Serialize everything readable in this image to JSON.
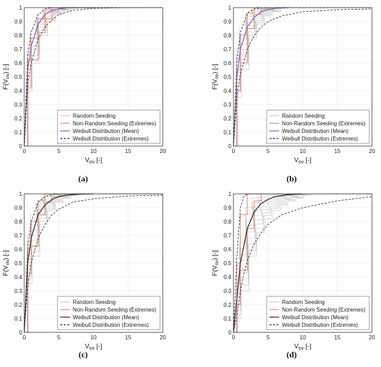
{
  "figure": {
    "panel_labels": [
      "(a)",
      "(b)",
      "(c)",
      "(d)"
    ]
  },
  "chart_data": [
    {
      "type": "line",
      "panel": "(a)",
      "xlabel": "V_ov [-]",
      "ylabel": "F(V_ov) [-]",
      "xlim": [
        0,
        20
      ],
      "ylim": [
        0,
        1
      ],
      "xticks": [
        0,
        5,
        10,
        15,
        20
      ],
      "yticks": [
        0,
        0.1,
        0.2,
        0.3,
        0.4,
        0.5,
        0.6,
        0.7,
        0.8,
        0.9,
        1
      ],
      "grid": true,
      "legend": "bottom-right",
      "series": [
        {
          "name": "Random Seeding",
          "kind": "step-band",
          "color": "#bdbdbd",
          "x": [
            0,
            0.5,
            1,
            2,
            3,
            4,
            5,
            6,
            7
          ],
          "lower": [
            0,
            0.4,
            0.6,
            0.8,
            0.9,
            0.95,
            0.98,
            0.995,
            1
          ],
          "upper": [
            0,
            0.7,
            0.84,
            0.95,
            0.99,
            1,
            1,
            1,
            1
          ]
        },
        {
          "name": "Non-Random Seeding (Extremes)",
          "kind": "step",
          "color": "#e08a7a",
          "x": [
            0,
            0.5,
            1,
            2,
            3,
            4,
            5,
            6
          ],
          "lower": [
            0,
            0.42,
            0.62,
            0.82,
            0.92,
            0.97,
            0.99,
            1
          ],
          "upper": [
            0,
            0.62,
            0.78,
            0.92,
            0.98,
            1,
            1,
            1
          ]
        },
        {
          "name": "Weibull Distribution (Mean)",
          "kind": "line",
          "color": "#7b5fb0",
          "x": [
            0,
            0.5,
            1,
            2,
            3,
            4,
            5,
            6,
            8,
            10
          ],
          "values": [
            0,
            0.55,
            0.72,
            0.88,
            0.95,
            0.98,
            0.99,
            1,
            1,
            1
          ]
        },
        {
          "name": "Weibull Distribution (Extremes)",
          "kind": "dashed",
          "color": "#333333",
          "x": [
            0,
            0.5,
            1,
            2,
            3,
            4,
            5,
            7,
            10,
            15,
            20
          ],
          "lower": [
            0,
            0.45,
            0.6,
            0.77,
            0.86,
            0.91,
            0.95,
            0.98,
            0.995,
            1,
            1
          ],
          "upper": [
            0,
            0.65,
            0.82,
            0.95,
            0.99,
            1,
            1,
            1,
            1,
            1,
            1
          ]
        }
      ]
    },
    {
      "type": "line",
      "panel": "(b)",
      "xlabel": "V_ov [-]",
      "ylabel": "F(V_ov) [-]",
      "xlim": [
        0,
        20
      ],
      "ylim": [
        0,
        1
      ],
      "xticks": [
        0,
        5,
        10,
        15,
        20
      ],
      "yticks": [
        0,
        0.1,
        0.2,
        0.3,
        0.4,
        0.5,
        0.6,
        0.7,
        0.8,
        0.9,
        1
      ],
      "grid": true,
      "legend": "bottom-right",
      "series": [
        {
          "name": "Random Seeding",
          "kind": "step-band",
          "color": "#bdbdbd",
          "x": [
            0,
            0.5,
            1,
            2,
            3,
            4,
            5,
            6
          ],
          "lower": [
            0,
            0.35,
            0.55,
            0.78,
            0.88,
            0.94,
            0.97,
            1
          ],
          "upper": [
            0,
            0.7,
            0.85,
            0.96,
            0.99,
            1,
            1,
            1
          ]
        },
        {
          "name": "Non-Random Seeding (Extremes)",
          "kind": "step",
          "color": "#e08a7a",
          "x": [
            0,
            0.5,
            1,
            2,
            3,
            4,
            5
          ],
          "lower": [
            0,
            0.4,
            0.6,
            0.85,
            0.95,
            0.99,
            1
          ],
          "upper": [
            0,
            0.55,
            0.8,
            0.96,
            1,
            1,
            1
          ]
        },
        {
          "name": "Weibull Distribution (Mean)",
          "kind": "line",
          "color": "#7b5fb0",
          "x": [
            0,
            0.5,
            1,
            2,
            3,
            4,
            5,
            6,
            8
          ],
          "values": [
            0,
            0.5,
            0.7,
            0.86,
            0.93,
            0.97,
            0.985,
            0.995,
            1
          ]
        },
        {
          "name": "Weibull Distribution (Extremes)",
          "kind": "dashed",
          "color": "#333333",
          "x": [
            0,
            0.5,
            1,
            2,
            3,
            4,
            5,
            7,
            10,
            15,
            20
          ],
          "lower": [
            0,
            0.35,
            0.52,
            0.7,
            0.8,
            0.86,
            0.9,
            0.94,
            0.97,
            0.985,
            0.99
          ],
          "upper": [
            0,
            0.62,
            0.82,
            0.96,
            0.99,
            1,
            1,
            1,
            1,
            1,
            1
          ]
        }
      ]
    },
    {
      "type": "line",
      "panel": "(c)",
      "xlabel": "V_ov [-]",
      "ylabel": "F(V_ov) [-]",
      "xlim": [
        0,
        20
      ],
      "ylim": [
        0,
        1
      ],
      "xticks": [
        0,
        5,
        10,
        15,
        20
      ],
      "yticks": [
        0,
        0.1,
        0.2,
        0.3,
        0.4,
        0.5,
        0.6,
        0.7,
        0.8,
        0.9,
        1
      ],
      "grid": true,
      "legend": "bottom-right",
      "series": [
        {
          "name": "Random Seeding",
          "kind": "step-band",
          "color": "#bdbdbd",
          "x": [
            0,
            0.5,
            1,
            2,
            3,
            4,
            5,
            6,
            7
          ],
          "lower": [
            0,
            0.35,
            0.55,
            0.78,
            0.88,
            0.94,
            0.97,
            0.99,
            1
          ],
          "upper": [
            0,
            0.7,
            0.85,
            0.95,
            0.99,
            1,
            1,
            1,
            1
          ]
        },
        {
          "name": "Non-Random Seeding (Extremes)",
          "kind": "step",
          "color": "#e08a7a",
          "x": [
            0,
            0.5,
            1,
            2,
            3,
            4,
            5
          ],
          "lower": [
            0,
            0.42,
            0.62,
            0.85,
            0.94,
            0.98,
            1
          ],
          "upper": [
            0,
            0.6,
            0.8,
            0.95,
            1,
            1,
            1
          ]
        },
        {
          "name": "Weibull Distribution (Mean)",
          "kind": "line",
          "color": "#222222",
          "x": [
            0,
            0.5,
            1,
            2,
            3,
            4,
            5,
            6,
            8,
            10
          ],
          "values": [
            0,
            0.5,
            0.68,
            0.85,
            0.92,
            0.96,
            0.98,
            0.99,
            0.998,
            1
          ]
        },
        {
          "name": "Weibull Distribution (Extremes)",
          "kind": "dashed",
          "color": "#333333",
          "x": [
            0,
            0.5,
            1,
            2,
            3,
            4,
            5,
            7,
            10,
            15,
            20
          ],
          "lower": [
            0,
            0.33,
            0.5,
            0.68,
            0.78,
            0.85,
            0.89,
            0.94,
            0.965,
            0.985,
            0.99
          ],
          "upper": [
            0,
            0.6,
            0.8,
            0.94,
            0.98,
            0.995,
            1,
            1,
            1,
            1,
            1
          ]
        }
      ]
    },
    {
      "type": "line",
      "panel": "(d)",
      "xlabel": "V_ov [-]",
      "ylabel": "F(V_ov) [-]",
      "xlim": [
        0,
        20
      ],
      "ylim": [
        0,
        1
      ],
      "xticks": [
        0,
        5,
        10,
        15,
        20
      ],
      "yticks": [
        0,
        0.1,
        0.2,
        0.3,
        0.4,
        0.5,
        0.6,
        0.7,
        0.8,
        0.9,
        1
      ],
      "grid": true,
      "legend": "bottom-right",
      "series": [
        {
          "name": "Random Seeding",
          "kind": "step-band",
          "color": "#bdbdbd",
          "x": [
            0,
            0.5,
            1,
            2,
            3,
            4,
            5,
            6,
            7,
            8,
            9,
            10
          ],
          "lower": [
            0,
            0.1,
            0.3,
            0.55,
            0.72,
            0.82,
            0.88,
            0.92,
            0.95,
            0.97,
            0.99,
            1
          ],
          "upper": [
            0,
            0.35,
            0.65,
            0.9,
            0.97,
            1,
            1,
            1,
            1,
            1,
            1,
            1
          ]
        },
        {
          "name": "Non-Random Seeding (Extremes)",
          "kind": "step",
          "color": "#e08a7a",
          "x": [
            0,
            0.5,
            1,
            2,
            3,
            4,
            5
          ],
          "lower": [
            0,
            0.2,
            0.45,
            0.75,
            0.95,
            1,
            1
          ],
          "upper": [
            0,
            0.5,
            0.85,
            1,
            1,
            1,
            1
          ]
        },
        {
          "name": "Weibull Distribution (Mean)",
          "kind": "line",
          "color": "#222222",
          "x": [
            0,
            0.5,
            1,
            2,
            3,
            4,
            5,
            6,
            8,
            10
          ],
          "values": [
            0,
            0.25,
            0.5,
            0.75,
            0.87,
            0.93,
            0.96,
            0.98,
            0.995,
            1
          ]
        },
        {
          "name": "Weibull Distribution (Extremes)",
          "kind": "dashed",
          "color": "#333333",
          "x": [
            0,
            0.5,
            1,
            1.5,
            2,
            3,
            4,
            5,
            7,
            10,
            15,
            20
          ],
          "lower": [
            0,
            0.12,
            0.3,
            0.42,
            0.52,
            0.64,
            0.72,
            0.78,
            0.85,
            0.9,
            0.95,
            0.98
          ],
          "upper": [
            0,
            0.55,
            0.9,
            0.98,
            1,
            1,
            1,
            1,
            1,
            1,
            1,
            1
          ]
        }
      ]
    }
  ]
}
